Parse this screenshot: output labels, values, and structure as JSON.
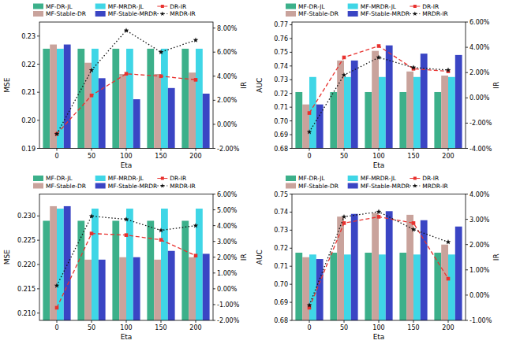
{
  "chart_data": [
    {
      "type": "bar",
      "x_label": "Eta",
      "y_label": "MSE",
      "y2_label": "IR",
      "legend": "top",
      "categories": [
        "0",
        "50",
        "100",
        "150",
        "200"
      ],
      "ylim": [
        0.19,
        0.235
      ],
      "yticks": [
        {
          "value": 0.19,
          "label": "0.19"
        },
        {
          "value": 0.2,
          "label": "0.20"
        },
        {
          "value": 0.21,
          "label": "0.21"
        },
        {
          "value": 0.22,
          "label": "0.22"
        },
        {
          "value": 0.23,
          "label": "0.23"
        }
      ],
      "y2lim": [
        -2,
        8.5
      ],
      "y2ticks": [
        {
          "value": -2,
          "label": "-2.00%"
        },
        {
          "value": 0,
          "label": "0.00%"
        },
        {
          "value": 2,
          "label": "2.00%"
        },
        {
          "value": 4,
          "label": "4.00%"
        },
        {
          "value": 6,
          "label": "6.00%"
        },
        {
          "value": 8,
          "label": "8.00%"
        }
      ],
      "series": [
        {
          "name": "MF-DR-JL",
          "color": "#3cb08a",
          "values": [
            0.2255,
            0.2255,
            0.2255,
            0.2255,
            0.2255
          ]
        },
        {
          "name": "MF-Stable-DR",
          "color": "#c9a39c",
          "values": [
            0.227,
            0.2205,
            0.2165,
            0.2165,
            0.217
          ]
        },
        {
          "name": "MF-MRDR-JL",
          "color": "#3fd6e6",
          "values": [
            0.2255,
            0.2255,
            0.2255,
            0.2255,
            0.2255
          ]
        },
        {
          "name": "MF-Stable-MRDR",
          "color": "#3a45c4",
          "values": [
            0.227,
            0.215,
            0.2075,
            0.2115,
            0.2095
          ]
        },
        {
          "name": "DR-IR",
          "type": "line",
          "axis": "y2",
          "color": "#e8322f",
          "marker": "square",
          "line_style": "dashed",
          "values": [
            -0.8,
            2.4,
            4.2,
            4.0,
            3.7
          ]
        },
        {
          "name": "MRDR-IR",
          "type": "line",
          "axis": "y2",
          "color": "#111111",
          "marker": "star",
          "line_style": "dotted",
          "values": [
            -0.8,
            4.5,
            7.8,
            6.0,
            7.0
          ]
        }
      ]
    },
    {
      "type": "bar",
      "x_label": "Eta",
      "y_label": "AUC",
      "y2_label": "IR",
      "legend": "top",
      "categories": [
        "0",
        "50",
        "100",
        "150",
        "200"
      ],
      "ylim": [
        0.68,
        0.772
      ],
      "yticks": [
        {
          "value": 0.68,
          "label": "0.68"
        },
        {
          "value": 0.69,
          "label": "0.69"
        },
        {
          "value": 0.7,
          "label": "0.70"
        },
        {
          "value": 0.71,
          "label": "0.71"
        },
        {
          "value": 0.72,
          "label": "0.72"
        },
        {
          "value": 0.73,
          "label": "0.73"
        },
        {
          "value": 0.74,
          "label": "0.74"
        },
        {
          "value": 0.75,
          "label": "0.75"
        },
        {
          "value": 0.76,
          "label": "0.76"
        },
        {
          "value": 0.77,
          "label": "0.77"
        }
      ],
      "y2lim": [
        -4,
        6
      ],
      "y2ticks": [
        {
          "value": -4,
          "label": "-4.00%"
        },
        {
          "value": -2,
          "label": "-2.00%"
        },
        {
          "value": 0,
          "label": "0.00%"
        },
        {
          "value": 2,
          "label": "2.00%"
        },
        {
          "value": 4,
          "label": "4.00%"
        },
        {
          "value": 6,
          "label": "6.00%"
        }
      ],
      "series": [
        {
          "name": "MF-DR-JL",
          "color": "#3cb08a",
          "values": [
            0.721,
            0.721,
            0.721,
            0.721,
            0.721
          ]
        },
        {
          "name": "MF-Stable-DR",
          "color": "#c9a39c",
          "values": [
            0.712,
            0.744,
            0.751,
            0.736,
            0.733
          ]
        },
        {
          "name": "MF-MRDR-JL",
          "color": "#3fd6e6",
          "values": [
            0.732,
            0.732,
            0.732,
            0.732,
            0.732
          ]
        },
        {
          "name": "MF-Stable-MRDR",
          "color": "#3a45c4",
          "values": [
            0.712,
            0.744,
            0.755,
            0.749,
            0.748
          ]
        },
        {
          "name": "DR-IR",
          "type": "line",
          "axis": "y2",
          "color": "#e8322f",
          "marker": "square",
          "line_style": "dashed",
          "values": [
            -1.2,
            3.2,
            4.1,
            2.3,
            2.1
          ]
        },
        {
          "name": "MRDR-IR",
          "type": "line",
          "axis": "y2",
          "color": "#111111",
          "marker": "star",
          "line_style": "dotted",
          "values": [
            -2.7,
            1.8,
            3.2,
            2.4,
            2.2
          ]
        }
      ]
    },
    {
      "type": "bar",
      "x_label": "Eta",
      "y_label": "MSE",
      "y2_label": "IR",
      "legend": "top",
      "categories": [
        "0",
        "50",
        "100",
        "150",
        "200"
      ],
      "ylim": [
        0.2085,
        0.2345
      ],
      "yticks": [
        {
          "value": 0.21,
          "label": "0.210"
        },
        {
          "value": 0.215,
          "label": "0.215"
        },
        {
          "value": 0.22,
          "label": "0.220"
        },
        {
          "value": 0.225,
          "label": "0.225"
        },
        {
          "value": 0.23,
          "label": "0.230"
        }
      ],
      "y2lim": [
        -2,
        6
      ],
      "y2ticks": [
        {
          "value": -2,
          "label": "-2.00%"
        },
        {
          "value": -1,
          "label": "-1.00%"
        },
        {
          "value": 0,
          "label": "0.00%"
        },
        {
          "value": 1,
          "label": "1.00%"
        },
        {
          "value": 2,
          "label": "2.00%"
        },
        {
          "value": 3,
          "label": "3.00%"
        },
        {
          "value": 4,
          "label": "4.00%"
        },
        {
          "value": 5,
          "label": "5.00%"
        },
        {
          "value": 6,
          "label": "6.00%"
        }
      ],
      "series": [
        {
          "name": "MF-DR-JL",
          "color": "#3cb08a",
          "values": [
            0.229,
            0.229,
            0.229,
            0.229,
            0.229
          ]
        },
        {
          "name": "MF-Stable-DR",
          "color": "#c9a39c",
          "values": [
            0.232,
            0.221,
            0.2215,
            0.221,
            0.2215
          ]
        },
        {
          "name": "MF-MRDR-JL",
          "color": "#3fd6e6",
          "values": [
            0.2315,
            0.2315,
            0.2315,
            0.2315,
            0.2315
          ]
        },
        {
          "name": "MF-Stable-MRDR",
          "color": "#3a45c4",
          "values": [
            0.232,
            0.221,
            0.2215,
            0.2228,
            0.2222
          ]
        },
        {
          "name": "DR-IR",
          "type": "line",
          "axis": "y2",
          "color": "#e8322f",
          "marker": "square",
          "line_style": "dashed",
          "values": [
            -1.2,
            3.5,
            3.4,
            3.1,
            2.1
          ]
        },
        {
          "name": "MRDR-IR",
          "type": "line",
          "axis": "y2",
          "color": "#111111",
          "marker": "star",
          "line_style": "dotted",
          "values": [
            0.2,
            4.6,
            4.4,
            3.7,
            4.0
          ]
        }
      ]
    },
    {
      "type": "bar",
      "x_label": "Eta",
      "y_label": "AUC",
      "y2_label": "IR",
      "legend": "top",
      "categories": [
        "0",
        "50",
        "100",
        "150",
        "200"
      ],
      "ylim": [
        0.68,
        0.75
      ],
      "yticks": [
        {
          "value": 0.68,
          "label": "0.68"
        },
        {
          "value": 0.69,
          "label": "0.69"
        },
        {
          "value": 0.7,
          "label": "0.70"
        },
        {
          "value": 0.71,
          "label": "0.71"
        },
        {
          "value": 0.72,
          "label": "0.72"
        },
        {
          "value": 0.73,
          "label": "0.73"
        },
        {
          "value": 0.74,
          "label": "0.74"
        },
        {
          "value": 0.75,
          "label": "0.75"
        }
      ],
      "y2lim": [
        -1,
        4
      ],
      "y2ticks": [
        {
          "value": -1,
          "label": "-1.00%"
        },
        {
          "value": 0,
          "label": "0.00%"
        },
        {
          "value": 1,
          "label": "1.00%"
        },
        {
          "value": 2,
          "label": "2.00%"
        },
        {
          "value": 3,
          "label": "3.00%"
        },
        {
          "value": 4,
          "label": "4.00%"
        }
      ],
      "series": [
        {
          "name": "MF-DR-JL",
          "color": "#3cb08a",
          "values": [
            0.7175,
            0.7175,
            0.7175,
            0.7175,
            0.7175
          ]
        },
        {
          "name": "MF-Stable-DR",
          "color": "#c9a39c",
          "values": [
            0.715,
            0.7375,
            0.7395,
            0.7385,
            0.722
          ]
        },
        {
          "name": "MF-MRDR-JL",
          "color": "#3fd6e6",
          "values": [
            0.7165,
            0.7165,
            0.7165,
            0.7165,
            0.7165
          ]
        },
        {
          "name": "MF-Stable-MRDR",
          "color": "#3a45c4",
          "values": [
            0.714,
            0.739,
            0.7405,
            0.7355,
            0.732
          ]
        },
        {
          "name": "DR-IR",
          "type": "line",
          "axis": "y2",
          "color": "#e8322f",
          "marker": "square",
          "line_style": "dashed",
          "values": [
            -0.5,
            2.85,
            3.1,
            2.85,
            0.65
          ]
        },
        {
          "name": "MRDR-IR",
          "type": "line",
          "axis": "y2",
          "color": "#111111",
          "marker": "star",
          "line_style": "dotted",
          "values": [
            -0.4,
            3.1,
            3.3,
            2.6,
            2.1
          ]
        }
      ]
    }
  ]
}
